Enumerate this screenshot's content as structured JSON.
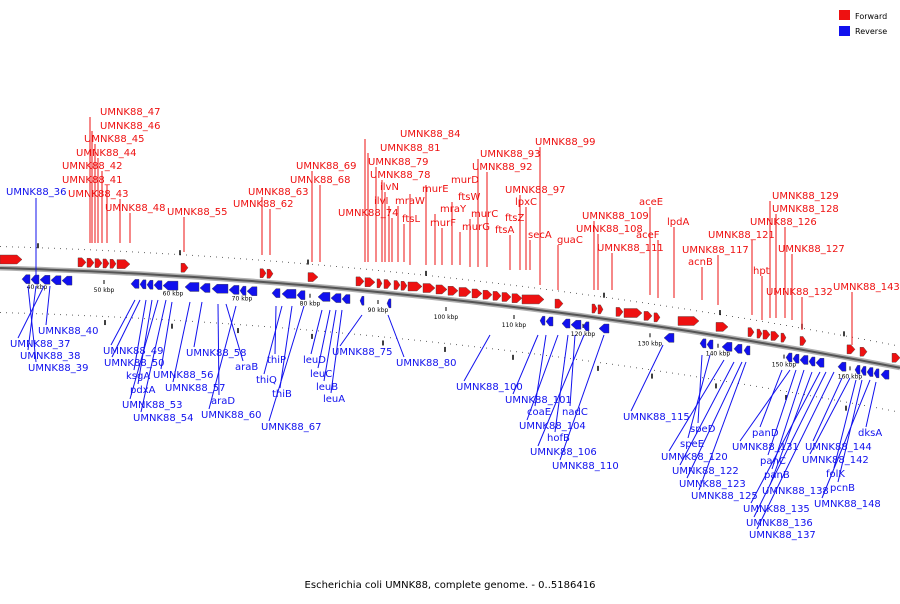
{
  "caption": "Escherichia coli UMNK88, complete genome. - 0..5186416",
  "legend": [
    {
      "label": "Forward",
      "color": "#ee1111"
    },
    {
      "label": "Reverse",
      "color": "#1111ee"
    }
  ],
  "colors": {
    "forward": "#ee1111",
    "reverse": "#1111ee",
    "backbone": "#808080"
  },
  "ticks": [
    "40 kbp",
    "50 kbp",
    "60 kbp",
    "70 kbp",
    "80 kbp",
    "90 kbp",
    "100 kbp",
    "110 kbp",
    "120 kbp",
    "130 kbp",
    "140 kbp",
    "150 kbp",
    "160 kbp"
  ],
  "forward_labels": [
    "UMNK88_47",
    "UMNK88_46",
    "UMNK88_45",
    "UMNK88_44",
    "UMNK88_42",
    "UMNK88_41",
    "UMNK88_43",
    "UMNK88_48",
    "UMNK88_55",
    "UMNK88_63",
    "UMNK88_62",
    "UMNK88_69",
    "UMNK88_68",
    "UMNK88_84",
    "UMNK88_81",
    "UMNK88_79",
    "UMNK88_78",
    "ilvN",
    "ilvI",
    "UMNK88_74",
    "mraW",
    "ftsL",
    "murE",
    "murD",
    "mraY",
    "murF",
    "ftsW",
    "murG",
    "murC",
    "UMNK88_93",
    "UMNK88_92",
    "UMNK88_99",
    "UMNK88_97",
    "lpxC",
    "ftsZ",
    "ftsA",
    "secA",
    "guaC",
    "UMNK88_109",
    "UMNK88_108",
    "UMNK88_111",
    "aceE",
    "aceF",
    "lpdA",
    "acnB",
    "UMNK88_117",
    "UMNK88_121",
    "hpt",
    "UMNK88_129",
    "UMNK88_128",
    "UMNK88_126",
    "UMNK88_127",
    "UMNK88_132",
    "UMNK88_143"
  ],
  "reverse_labels": [
    "UMNK88_36",
    "UMNK88_40",
    "UMNK88_37",
    "UMNK88_38",
    "UMNK88_39",
    "UMNK88_49",
    "UMNK88_50",
    "ksgA",
    "pdxA",
    "UMNK88_53",
    "UMNK88_54",
    "UMNK88_56",
    "UMNK88_57",
    "UMNK88_58",
    "araB",
    "araD",
    "UMNK88_60",
    "thiP",
    "thiQ",
    "thiB",
    "UMNK88_67",
    "leuD",
    "leuC",
    "leuB",
    "leuA",
    "UMNK88_75",
    "UMNK88_80",
    "UMNK88_100",
    "UMNK88_101",
    "coaE",
    "nadC",
    "UMNK88_104",
    "hofB",
    "UMNK88_106",
    "UMNK88_110",
    "UMNK88_115",
    "speD",
    "speE",
    "UMNK88_120",
    "UMNK88_122",
    "UMNK88_123",
    "UMNK88_125",
    "panD",
    "UMNK88_131",
    "panC",
    "panB",
    "UMNK88_138",
    "UMNK88_135",
    "UMNK88_136",
    "UMNK88_137",
    "UMNK88_144",
    "UMNK88_142",
    "folK",
    "pcnB",
    "UMNK88_148",
    "dksA"
  ]
}
